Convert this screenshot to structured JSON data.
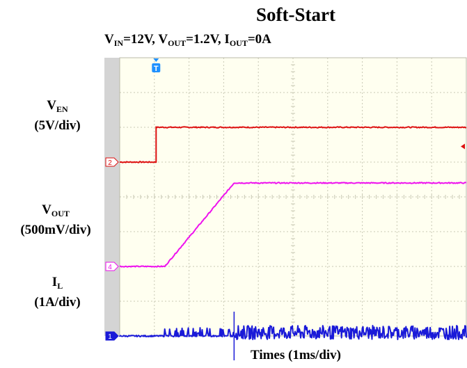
{
  "title": "Soft-Start",
  "subtitle": {
    "parts": [
      {
        "t": "V",
        "sub": "IN"
      },
      {
        "t": "=12V, V",
        "sub": "OUT"
      },
      {
        "t": "=1.2V, I",
        "sub": "OUT"
      },
      {
        "t": "=0A",
        "sub": ""
      }
    ]
  },
  "xlabel": "Times (1ms/div)",
  "channels": [
    {
      "symbol": "V",
      "sub": "EN",
      "scale": "(5V/div)",
      "marker": "2",
      "color": "#dd1111"
    },
    {
      "symbol": "V",
      "sub": "OUT",
      "scale": "(500mV/div)",
      "marker": "4",
      "color": "#ee11ee"
    },
    {
      "symbol": "I",
      "sub": "L",
      "scale": "(1A/div)",
      "marker": "1",
      "color": "#1a1ad8"
    }
  ],
  "trigger_marker": "T",
  "colors": {
    "grid_background": "#fffff0",
    "grid_lines": "#c8c8b4",
    "left_strip": "#d4d4d4",
    "v_en": "#dd1111",
    "v_out": "#ee11ee",
    "i_l": "#1a1ad8"
  },
  "chart_data": {
    "type": "line",
    "title": "Soft-Start",
    "xlabel": "Times (1ms/div)",
    "x_unit": "div",
    "xlim": [
      0,
      10
    ],
    "ylim": [
      0,
      8
    ],
    "grid": true,
    "series": [
      {
        "name": "VEN",
        "scale": "5V/div",
        "y_div_offset": 5.0,
        "points": [
          [
            0,
            0
          ],
          [
            1.05,
            0
          ],
          [
            1.05,
            1.0
          ],
          [
            10,
            1.0
          ]
        ]
      },
      {
        "name": "VOUT",
        "scale": "500mV/div",
        "y_div_offset": 2.0,
        "points": [
          [
            0,
            0
          ],
          [
            1.3,
            0
          ],
          [
            3.3,
            2.4
          ],
          [
            10,
            2.4
          ]
        ]
      },
      {
        "name": "IL",
        "scale": "1A/div",
        "y_div_offset": 0.0,
        "points": [
          [
            0,
            0
          ],
          [
            1.3,
            0.2
          ],
          [
            3.3,
            0.2
          ],
          [
            3.3,
            0.7
          ],
          [
            10,
            0.4
          ]
        ]
      }
    ]
  }
}
